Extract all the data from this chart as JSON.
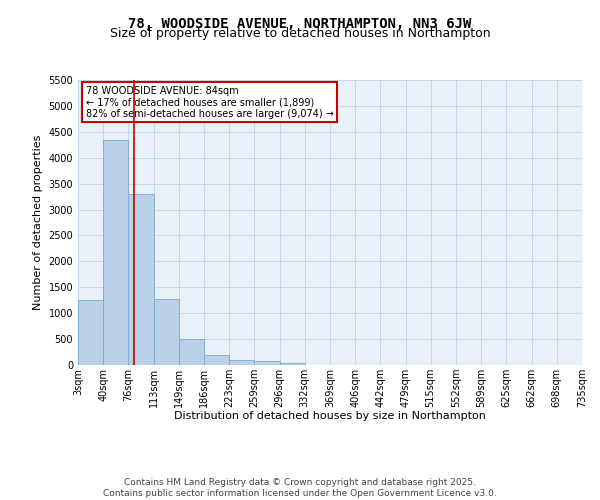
{
  "title": "78, WOODSIDE AVENUE, NORTHAMPTON, NN3 6JW",
  "subtitle": "Size of property relative to detached houses in Northampton",
  "xlabel": "Distribution of detached houses by size in Northampton",
  "ylabel": "Number of detached properties",
  "bar_color": "#b8d0e8",
  "bar_edge_color": "#7aaace",
  "background_color": "#e8f0f8",
  "annotation_text": "78 WOODSIDE AVENUE: 84sqm\n← 17% of detached houses are smaller (1,899)\n82% of semi-detached houses are larger (9,074) →",
  "property_size": 84,
  "vline_color": "#cc0000",
  "annotation_box_color": "#cc0000",
  "bin_edges": [
    3,
    40,
    76,
    113,
    149,
    186,
    223,
    259,
    296,
    332,
    369,
    406,
    442,
    479,
    515,
    552,
    589,
    625,
    662,
    698,
    735
  ],
  "bar_heights": [
    1250,
    4350,
    3300,
    1280,
    500,
    200,
    100,
    80,
    40,
    5,
    0,
    0,
    0,
    0,
    0,
    0,
    0,
    0,
    0,
    0
  ],
  "ylim": [
    0,
    5500
  ],
  "yticks": [
    0,
    500,
    1000,
    1500,
    2000,
    2500,
    3000,
    3500,
    4000,
    4500,
    5000,
    5500
  ],
  "grid_color": "#c8d8e8",
  "footer_text": "Contains HM Land Registry data © Crown copyright and database right 2025.\nContains public sector information licensed under the Open Government Licence v3.0.",
  "title_fontsize": 10,
  "subtitle_fontsize": 9,
  "axis_label_fontsize": 8,
  "tick_fontsize": 7,
  "footer_fontsize": 6.5
}
